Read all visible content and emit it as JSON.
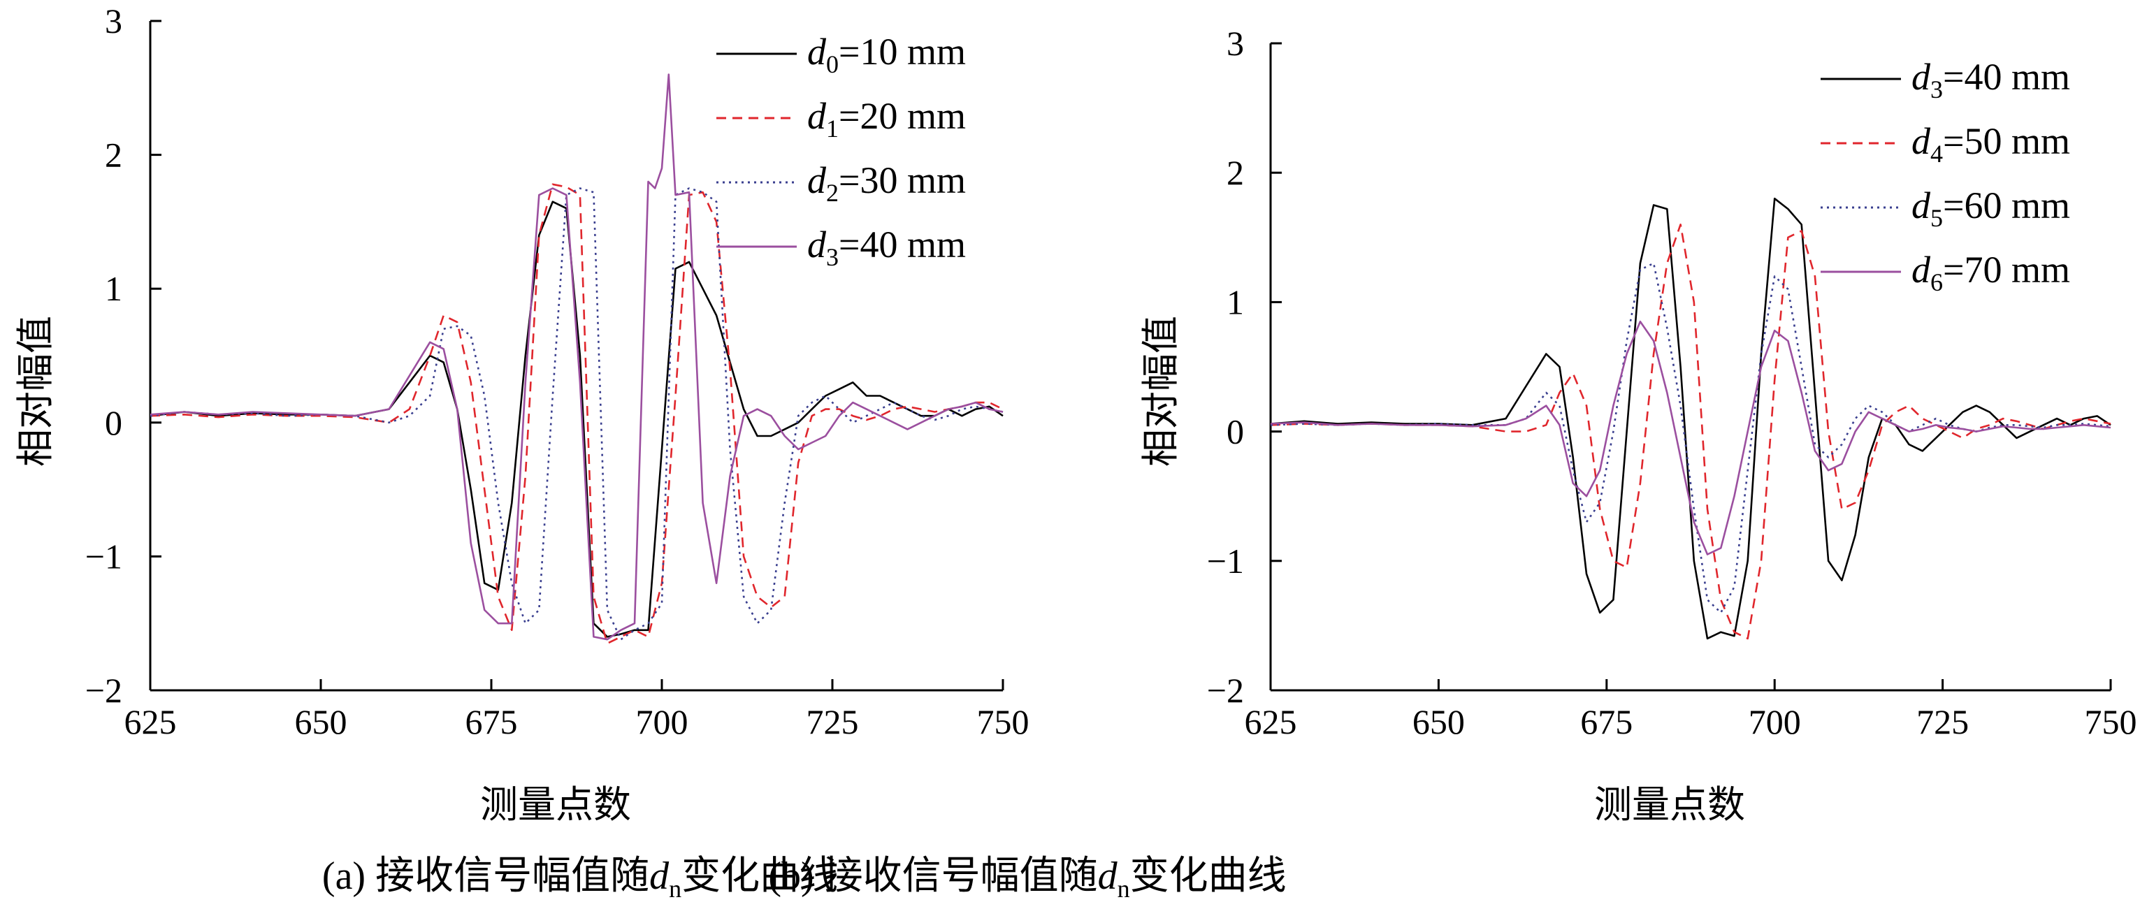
{
  "chart_data": [
    {
      "type": "line",
      "caption": {
        "prefix": "(a) 接收信号幅值随",
        "var": "d",
        "var_sub": "n",
        "suffix": "变化曲线"
      },
      "xlabel": "测量点数",
      "ylabel": "相对幅值",
      "xlim": [
        625,
        750
      ],
      "ylim": [
        -2,
        3
      ],
      "xticks": [
        625,
        650,
        675,
        700,
        725,
        750
      ],
      "yticks": [
        -2,
        -1,
        0,
        1,
        2,
        3
      ],
      "ytick_labels": [
        "−2",
        "−1",
        "0",
        "1",
        "2",
        "3"
      ],
      "legend_position": "top-right",
      "series": [
        {
          "label": "d",
          "sub": "0",
          "value": "=10 mm",
          "color": "#000000",
          "dash": "solid",
          "x": [
            625,
            630,
            635,
            640,
            645,
            650,
            655,
            660,
            663,
            666,
            668,
            670,
            672,
            674,
            676,
            678,
            680,
            682,
            684,
            686,
            688,
            690,
            692,
            694,
            696,
            698,
            700,
            702,
            704,
            706,
            708,
            710,
            712,
            714,
            716,
            718,
            720,
            722,
            724,
            726,
            728,
            730,
            732,
            734,
            736,
            738,
            740,
            742,
            744,
            746,
            748,
            750
          ],
          "y": [
            0.05,
            0.08,
            0.05,
            0.07,
            0.06,
            0.06,
            0.05,
            0.1,
            0.3,
            0.5,
            0.45,
            0.1,
            -0.5,
            -1.2,
            -1.25,
            -0.6,
            0.5,
            1.4,
            1.65,
            1.6,
            0.5,
            -1.5,
            -1.6,
            -1.58,
            -1.55,
            -1.55,
            -0.2,
            1.15,
            1.2,
            1.0,
            0.8,
            0.45,
            0.1,
            -0.1,
            -0.1,
            -0.05,
            0.0,
            0.1,
            0.2,
            0.25,
            0.3,
            0.2,
            0.2,
            0.15,
            0.1,
            0.05,
            0.05,
            0.1,
            0.05,
            0.1,
            0.12,
            0.05
          ]
        },
        {
          "label": "d",
          "sub": "1",
          "value": "=20 mm",
          "color": "#e0262c",
          "dash": "dashed",
          "x": [
            625,
            630,
            635,
            640,
            645,
            650,
            655,
            660,
            663,
            666,
            668,
            670,
            672,
            674,
            676,
            678,
            680,
            682,
            684,
            686,
            688,
            690,
            692,
            694,
            696,
            698,
            700,
            702,
            704,
            706,
            708,
            710,
            712,
            714,
            716,
            718,
            720,
            722,
            724,
            726,
            728,
            730,
            732,
            734,
            736,
            738,
            740,
            742,
            744,
            746,
            748,
            750
          ],
          "y": [
            0.05,
            0.06,
            0.04,
            0.06,
            0.05,
            0.05,
            0.04,
            0.0,
            0.1,
            0.5,
            0.8,
            0.75,
            0.3,
            -0.5,
            -1.3,
            -1.55,
            -0.4,
            1.4,
            1.78,
            1.76,
            1.7,
            -1.3,
            -1.65,
            -1.6,
            -1.55,
            -1.6,
            -1.2,
            0.2,
            1.7,
            1.72,
            1.5,
            0.4,
            -1.0,
            -1.3,
            -1.38,
            -1.3,
            -0.3,
            0.05,
            0.1,
            0.1,
            0.05,
            0.02,
            0.05,
            0.1,
            0.12,
            0.1,
            0.08,
            0.1,
            0.12,
            0.15,
            0.15,
            0.1
          ]
        },
        {
          "label": "d",
          "sub": "2",
          "value": "=30 mm",
          "color": "#3a3f8f",
          "dash": "dotted",
          "x": [
            625,
            630,
            635,
            640,
            645,
            650,
            655,
            660,
            663,
            666,
            668,
            670,
            672,
            674,
            676,
            678,
            680,
            682,
            684,
            686,
            688,
            690,
            692,
            694,
            696,
            698,
            700,
            702,
            704,
            706,
            708,
            710,
            712,
            714,
            716,
            718,
            720,
            722,
            724,
            726,
            728,
            730,
            732,
            734,
            736,
            738,
            740,
            742,
            744,
            746,
            748,
            750
          ],
          "y": [
            0.05,
            0.08,
            0.06,
            0.07,
            0.05,
            0.06,
            0.05,
            0.0,
            0.05,
            0.2,
            0.7,
            0.72,
            0.65,
            0.2,
            -0.6,
            -1.2,
            -1.5,
            -1.4,
            0.2,
            1.7,
            1.75,
            1.72,
            -1.4,
            -1.62,
            -1.55,
            -1.5,
            -1.35,
            1.7,
            1.75,
            1.72,
            1.65,
            -0.2,
            -1.3,
            -1.5,
            -1.4,
            -0.6,
            0.05,
            0.15,
            0.2,
            0.1,
            0.0,
            0.05,
            0.1,
            0.15,
            0.1,
            0.05,
            0.02,
            0.05,
            0.1,
            0.12,
            0.1,
            0.08
          ]
        },
        {
          "label": "d",
          "sub": "3",
          "value": "=40 mm",
          "color": "#9b4f9f",
          "dash": "solid",
          "x": [
            625,
            630,
            635,
            640,
            645,
            650,
            655,
            660,
            663,
            666,
            668,
            670,
            672,
            674,
            676,
            678,
            680,
            682,
            684,
            686,
            688,
            690,
            692,
            694,
            696,
            698,
            699,
            700,
            701,
            702,
            704,
            706,
            708,
            710,
            712,
            714,
            716,
            718,
            720,
            722,
            724,
            726,
            728,
            730,
            732,
            734,
            736,
            738,
            740,
            742,
            744,
            746,
            748,
            750
          ],
          "y": [
            0.06,
            0.08,
            0.06,
            0.08,
            0.07,
            0.06,
            0.05,
            0.1,
            0.35,
            0.6,
            0.55,
            0.1,
            -0.9,
            -1.4,
            -1.5,
            -1.5,
            0.3,
            1.7,
            1.75,
            1.7,
            0.3,
            -1.6,
            -1.62,
            -1.55,
            -1.5,
            1.8,
            1.75,
            1.9,
            2.6,
            1.7,
            1.72,
            -0.6,
            -1.2,
            -0.4,
            0.05,
            0.1,
            0.05,
            -0.1,
            -0.2,
            -0.15,
            -0.1,
            0.05,
            0.15,
            0.1,
            0.05,
            0.0,
            -0.05,
            0.0,
            0.05,
            0.1,
            0.12,
            0.15,
            0.1,
            0.08
          ]
        }
      ]
    },
    {
      "type": "line",
      "caption": {
        "prefix": "(b) 接收信号幅值随",
        "var": "d",
        "var_sub": "n",
        "suffix": "变化曲线"
      },
      "xlabel": "测量点数",
      "ylabel": "相对幅值",
      "xlim": [
        625,
        750
      ],
      "ylim": [
        -2,
        3
      ],
      "xticks": [
        625,
        650,
        675,
        700,
        725,
        750
      ],
      "yticks": [
        -2,
        -1,
        0,
        1,
        2,
        3
      ],
      "ytick_labels": [
        "−2",
        "−1",
        "0",
        "1",
        "2",
        "3"
      ],
      "legend_position": "top-right",
      "series": [
        {
          "label": "d",
          "sub": "3",
          "value": "=40 mm",
          "color": "#000000",
          "dash": "solid",
          "x": [
            625,
            630,
            635,
            640,
            645,
            650,
            655,
            660,
            663,
            666,
            668,
            670,
            672,
            674,
            676,
            678,
            680,
            682,
            684,
            686,
            688,
            690,
            692,
            694,
            696,
            698,
            700,
            702,
            704,
            706,
            708,
            710,
            712,
            714,
            716,
            718,
            720,
            722,
            724,
            726,
            728,
            730,
            732,
            734,
            736,
            738,
            740,
            742,
            744,
            746,
            748,
            750
          ],
          "y": [
            0.06,
            0.08,
            0.06,
            0.07,
            0.06,
            0.06,
            0.05,
            0.1,
            0.35,
            0.6,
            0.5,
            -0.2,
            -1.1,
            -1.4,
            -1.3,
            0.0,
            1.3,
            1.75,
            1.72,
            0.5,
            -1.0,
            -1.6,
            -1.55,
            -1.58,
            -1.0,
            0.6,
            1.8,
            1.72,
            1.6,
            0.3,
            -1.0,
            -1.15,
            -0.8,
            -0.2,
            0.1,
            0.05,
            -0.1,
            -0.15,
            -0.05,
            0.05,
            0.15,
            0.2,
            0.15,
            0.05,
            -0.05,
            0.0,
            0.05,
            0.1,
            0.05,
            0.1,
            0.12,
            0.05
          ]
        },
        {
          "label": "d",
          "sub": "4",
          "value": "=50 mm",
          "color": "#e0262c",
          "dash": "dashed",
          "x": [
            625,
            630,
            635,
            640,
            645,
            650,
            655,
            660,
            663,
            666,
            668,
            670,
            672,
            674,
            676,
            678,
            680,
            682,
            684,
            686,
            688,
            690,
            692,
            694,
            696,
            698,
            700,
            702,
            704,
            706,
            708,
            710,
            712,
            714,
            716,
            718,
            720,
            722,
            724,
            726,
            728,
            730,
            732,
            734,
            736,
            738,
            740,
            742,
            744,
            746,
            748,
            750
          ],
          "y": [
            0.05,
            0.06,
            0.05,
            0.06,
            0.05,
            0.05,
            0.04,
            0.0,
            0.0,
            0.05,
            0.3,
            0.45,
            0.2,
            -0.6,
            -1.0,
            -1.05,
            -0.4,
            0.6,
            1.3,
            1.6,
            1.0,
            -0.6,
            -1.3,
            -1.55,
            -1.6,
            -1.0,
            0.4,
            1.5,
            1.55,
            1.2,
            0.0,
            -0.6,
            -0.55,
            -0.3,
            0.05,
            0.15,
            0.2,
            0.1,
            0.05,
            0.0,
            -0.05,
            0.02,
            0.05,
            0.1,
            0.08,
            0.05,
            0.02,
            0.05,
            0.08,
            0.1,
            0.08,
            0.06
          ]
        },
        {
          "label": "d",
          "sub": "5",
          "value": "=60 mm",
          "color": "#3a3f8f",
          "dash": "dotted",
          "x": [
            625,
            630,
            635,
            640,
            645,
            650,
            655,
            660,
            663,
            666,
            668,
            670,
            672,
            674,
            676,
            678,
            680,
            682,
            684,
            686,
            688,
            690,
            692,
            694,
            696,
            698,
            700,
            702,
            704,
            706,
            708,
            710,
            712,
            714,
            716,
            718,
            720,
            722,
            724,
            726,
            728,
            730,
            732,
            734,
            736,
            738,
            740,
            742,
            744,
            746,
            748,
            750
          ],
          "y": [
            0.05,
            0.06,
            0.05,
            0.06,
            0.05,
            0.06,
            0.05,
            0.05,
            0.1,
            0.3,
            0.2,
            -0.3,
            -0.7,
            -0.55,
            0.0,
            0.7,
            1.25,
            1.3,
            0.8,
            0.2,
            -0.6,
            -1.3,
            -1.4,
            -1.2,
            -0.3,
            0.6,
            1.2,
            1.1,
            0.5,
            -0.1,
            -0.2,
            -0.1,
            0.1,
            0.2,
            0.15,
            0.05,
            0.0,
            0.05,
            0.1,
            0.05,
            0.02,
            0.0,
            0.03,
            0.05,
            0.05,
            0.04,
            0.03,
            0.05,
            0.05,
            0.06,
            0.05,
            0.04
          ]
        },
        {
          "label": "d",
          "sub": "6",
          "value": "=70 mm",
          "color": "#9b4f9f",
          "dash": "solid",
          "x": [
            625,
            630,
            635,
            640,
            645,
            650,
            655,
            660,
            663,
            666,
            668,
            670,
            672,
            674,
            676,
            678,
            680,
            682,
            684,
            686,
            688,
            690,
            692,
            694,
            696,
            698,
            700,
            702,
            704,
            706,
            708,
            710,
            712,
            714,
            716,
            718,
            720,
            722,
            724,
            726,
            728,
            730,
            732,
            734,
            736,
            738,
            740,
            742,
            744,
            746,
            748,
            750
          ],
          "y": [
            0.06,
            0.07,
            0.05,
            0.06,
            0.05,
            0.05,
            0.04,
            0.05,
            0.1,
            0.2,
            0.05,
            -0.4,
            -0.5,
            -0.3,
            0.2,
            0.6,
            0.85,
            0.7,
            0.3,
            -0.2,
            -0.7,
            -0.95,
            -0.9,
            -0.5,
            0.0,
            0.5,
            0.78,
            0.7,
            0.3,
            -0.15,
            -0.3,
            -0.25,
            0.0,
            0.15,
            0.1,
            0.05,
            0.0,
            0.02,
            0.05,
            0.03,
            0.02,
            0.0,
            0.02,
            0.04,
            0.03,
            0.02,
            0.02,
            0.03,
            0.04,
            0.05,
            0.04,
            0.03
          ]
        }
      ]
    }
  ]
}
